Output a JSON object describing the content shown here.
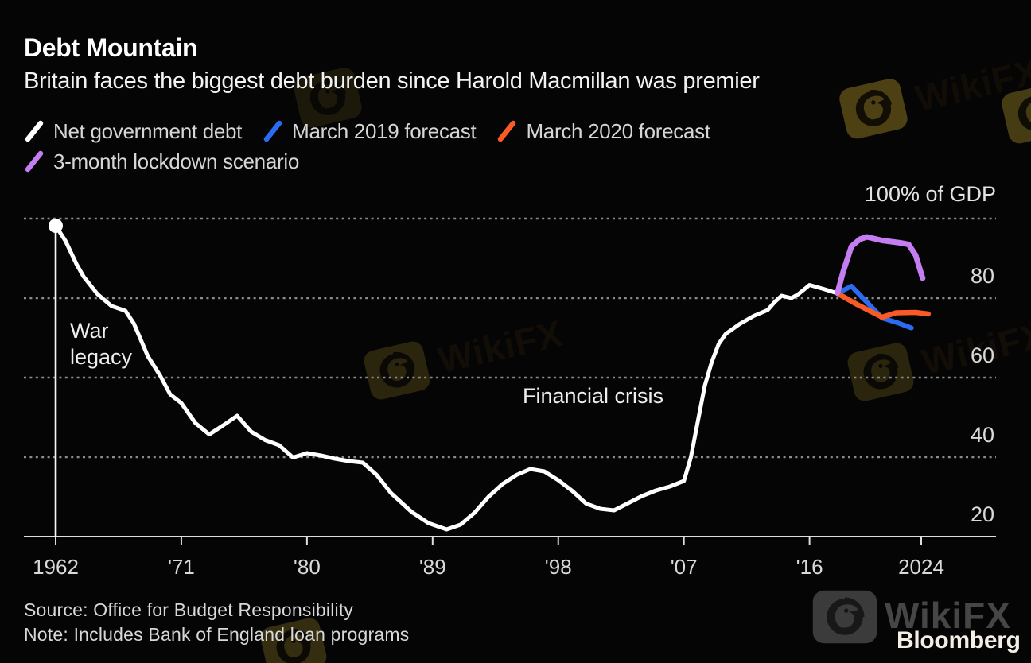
{
  "header": {
    "title": "Debt Mountain",
    "subtitle": "Britain faces the biggest debt burden since Harold Macmillan was premier"
  },
  "legend": [
    {
      "label": "Net government debt",
      "color": "#ffffff"
    },
    {
      "label": "March 2019 forecast",
      "color": "#2b6bf2"
    },
    {
      "label": "March 2020 forecast",
      "color": "#f95a26"
    },
    {
      "label": "3-month lockdown scenario",
      "color": "#c47ef2"
    }
  ],
  "chart_data": {
    "type": "line",
    "title": "Debt Mountain",
    "subtitle": "Britain faces the biggest debt burden since Harold Macmillan was premier",
    "unit_label": "100% of GDP",
    "xlabel": "",
    "ylabel": "% of GDP",
    "xlim": [
      1962,
      2024
    ],
    "ylim": [
      20,
      100
    ],
    "grid": "horizontal dotted",
    "legend_position": "top-left",
    "gridline_values": [
      100,
      80,
      60,
      40
    ],
    "baseline_value": 20,
    "x_ticks": [
      {
        "year": 1962,
        "label": "1962"
      },
      {
        "year": 1971,
        "label": "'71"
      },
      {
        "year": 1980,
        "label": "'80"
      },
      {
        "year": 1989,
        "label": "'89"
      },
      {
        "year": 1998,
        "label": "'98"
      },
      {
        "year": 2007,
        "label": "'07"
      },
      {
        "year": 2016,
        "label": "'16"
      },
      {
        "year": 2024,
        "label": "2024"
      }
    ],
    "y_ticks": [
      {
        "value": 80,
        "label": "80"
      },
      {
        "value": 60,
        "label": "60"
      },
      {
        "value": 40,
        "label": "40"
      },
      {
        "value": 20,
        "label": "20"
      }
    ],
    "annotations": {
      "war": [
        "War",
        "legacy"
      ],
      "crisis": "Financial crisis"
    },
    "series": [
      {
        "name": "Net government debt",
        "color": "#ffffff",
        "width": 5,
        "start_dot": true,
        "start_rule": true,
        "points": [
          [
            1962,
            98.2
          ],
          [
            1962.7,
            94.4
          ],
          [
            1963.5,
            88.5
          ],
          [
            1964,
            85.4
          ],
          [
            1965,
            81
          ],
          [
            1966,
            78
          ],
          [
            1967,
            76.8
          ],
          [
            1967.6,
            73.6
          ],
          [
            1968.6,
            65.4
          ],
          [
            1969.5,
            60.4
          ],
          [
            1970.2,
            55.8
          ],
          [
            1971,
            53.6
          ],
          [
            1972,
            48.6
          ],
          [
            1973,
            45.7
          ],
          [
            1974,
            48
          ],
          [
            1975,
            50.4
          ],
          [
            1976,
            46.4
          ],
          [
            1977,
            44.3
          ],
          [
            1978,
            43
          ],
          [
            1979,
            39.9
          ],
          [
            1980,
            41
          ],
          [
            1981,
            40.4
          ],
          [
            1982,
            39.6
          ],
          [
            1983,
            39
          ],
          [
            1984,
            38.6
          ],
          [
            1985,
            35.5
          ],
          [
            1986,
            31
          ],
          [
            1987.5,
            26.2
          ],
          [
            1988.7,
            23.4
          ],
          [
            1990,
            21.8
          ],
          [
            1991,
            23
          ],
          [
            1992,
            26
          ],
          [
            1993,
            30
          ],
          [
            1994,
            33.2
          ],
          [
            1995,
            35.5
          ],
          [
            1996,
            37
          ],
          [
            1997,
            36.4
          ],
          [
            1998,
            34.2
          ],
          [
            1999,
            31.5
          ],
          [
            2000,
            28.3
          ],
          [
            2001,
            27
          ],
          [
            2002,
            26.6
          ],
          [
            2003,
            28.4
          ],
          [
            2004,
            30.2
          ],
          [
            2005,
            31.6
          ],
          [
            2006,
            32.6
          ],
          [
            2007,
            34
          ],
          [
            2007.5,
            40
          ],
          [
            2008,
            49
          ],
          [
            2008.5,
            58
          ],
          [
            2009,
            64
          ],
          [
            2009.5,
            68.5
          ],
          [
            2010,
            71
          ],
          [
            2011,
            73.5
          ],
          [
            2012,
            75.5
          ],
          [
            2013,
            77
          ],
          [
            2013.5,
            79
          ],
          [
            2014,
            80.6
          ],
          [
            2014.7,
            80
          ],
          [
            2015.2,
            81
          ],
          [
            2016,
            83.3
          ],
          [
            2017,
            82.3
          ],
          [
            2018,
            81.2
          ]
        ]
      },
      {
        "name": "March 2019 forecast",
        "color": "#2b6bf2",
        "width": 6,
        "points": [
          [
            2018,
            81.2
          ],
          [
            2019,
            83
          ],
          [
            2021.2,
            75
          ],
          [
            2022.3,
            73.8
          ],
          [
            2023.3,
            72.5
          ]
        ]
      },
      {
        "name": "March 2020 forecast",
        "color": "#f95a26",
        "width": 6.5,
        "points": [
          [
            2018,
            81.2
          ],
          [
            2019.4,
            78.4
          ],
          [
            2021.2,
            75.2
          ],
          [
            2022.2,
            76.3
          ],
          [
            2023.6,
            76.4
          ],
          [
            2024.5,
            76
          ]
        ]
      },
      {
        "name": "3-month lockdown scenario",
        "color": "#c47ef2",
        "width": 7,
        "points": [
          [
            2018,
            81.3
          ],
          [
            2018.4,
            86.5
          ],
          [
            2019,
            93
          ],
          [
            2019.6,
            94.8
          ],
          [
            2020.1,
            95.4
          ],
          [
            2021.2,
            94.5
          ],
          [
            2022.5,
            93.9
          ],
          [
            2023.1,
            93.5
          ],
          [
            2023.6,
            90.8
          ],
          [
            2024.1,
            85
          ]
        ]
      }
    ]
  },
  "footer": {
    "source": "Source: Office for Budget Responsibility",
    "note": "Note: Includes Bank of England loan programs",
    "brand": "Bloomberg"
  },
  "watermark": {
    "text": "WikiFX"
  }
}
